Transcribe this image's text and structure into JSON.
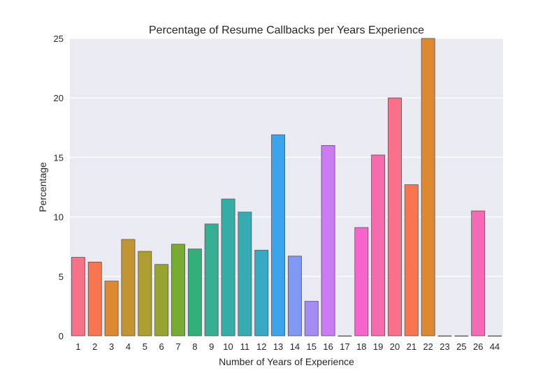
{
  "chart_data": {
    "type": "bar",
    "title": "Percentage of Resume Callbacks per Years Experience",
    "xlabel": "Number of Years of Experience",
    "ylabel": "Percentage",
    "ylim": [
      0,
      25
    ],
    "yticks": [
      0,
      5,
      10,
      15,
      20,
      25
    ],
    "grid": true,
    "categories": [
      "1",
      "2",
      "3",
      "4",
      "5",
      "6",
      "7",
      "8",
      "9",
      "10",
      "11",
      "12",
      "13",
      "14",
      "15",
      "16",
      "17",
      "18",
      "19",
      "20",
      "21",
      "22",
      "23",
      "25",
      "26",
      "44"
    ],
    "values": [
      6.6,
      6.2,
      4.6,
      8.1,
      7.1,
      6.0,
      7.7,
      7.3,
      9.4,
      11.5,
      10.4,
      7.2,
      16.9,
      6.7,
      2.9,
      16.0,
      0,
      9.1,
      15.2,
      20.0,
      12.7,
      25.0,
      0,
      0,
      10.5,
      0
    ],
    "colors": [
      "#f77189",
      "#f7754f",
      "#dc8932",
      "#c39532",
      "#ae9d31",
      "#97a431",
      "#77ab31",
      "#33b07a",
      "#35ae93",
      "#36ada4",
      "#37abb4",
      "#38a9c5",
      "#3ba3ec",
      "#8197f4",
      "#a48cf4",
      "#cc7af4",
      "#f45cf2",
      "#f565cc",
      "#f66bad",
      "#f77189",
      "#f7754f",
      "#dc8932",
      "#c39532",
      "#ae9d31",
      "#f669b7",
      "#97a431"
    ]
  }
}
